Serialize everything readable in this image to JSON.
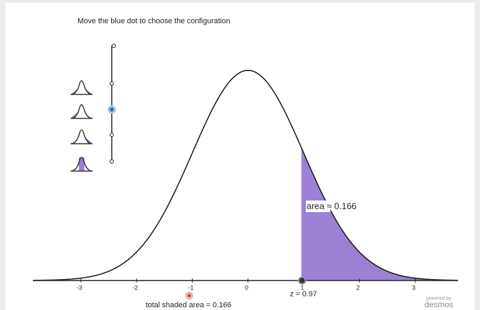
{
  "chart_data": {
    "type": "density",
    "title": "Move the blue dot to choose the configuration",
    "xlim": [
      -3.86,
      3.77
    ],
    "ylim": [
      -0.056,
      0.526
    ],
    "xticks": [
      -3,
      -2,
      -1,
      0,
      1,
      2,
      3
    ],
    "shade_color": "#9b80d3",
    "shade_from": {
      "value": 0.97,
      "label": "z = 0.97"
    },
    "shaded_area": {
      "value": 0.166,
      "label": "area ≈ 0.166"
    },
    "total_area": {
      "value": 0.166,
      "label": "total shaded area = 0.166"
    },
    "branding": [
      "powered by",
      "desmos"
    ]
  }
}
